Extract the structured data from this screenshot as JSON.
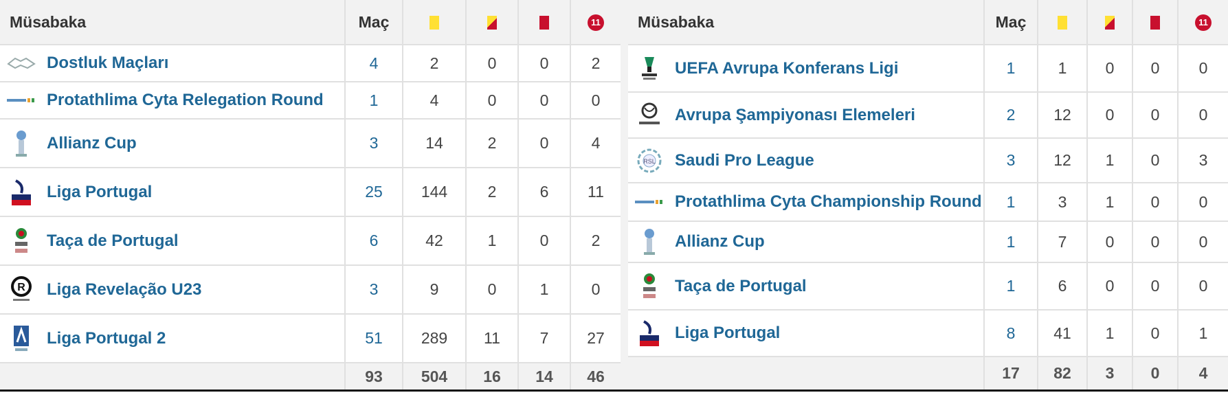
{
  "left": {
    "headers": {
      "competition": "Müsabaka",
      "matches": "Maç",
      "red_badge_text": "11"
    },
    "rows": [
      {
        "name": "Dostluk Maçları",
        "logo": "handshake-icon",
        "matches": "4",
        "yellow": "2",
        "yellow_red": "0",
        "red": "0",
        "penalty": "2"
      },
      {
        "name": "Protathlima Cyta Relegation Round",
        "logo": "cyta-logo",
        "matches": "1",
        "yellow": "4",
        "yellow_red": "0",
        "red": "0",
        "penalty": "0"
      },
      {
        "name": "Allianz Cup",
        "logo": "allianz-cup-logo",
        "matches": "3",
        "yellow": "14",
        "yellow_red": "2",
        "red": "0",
        "penalty": "4"
      },
      {
        "name": "Liga Portugal",
        "logo": "liga-portugal-logo",
        "matches": "25",
        "yellow": "144",
        "yellow_red": "2",
        "red": "6",
        "penalty": "11"
      },
      {
        "name": "Taça de Portugal",
        "logo": "taca-portugal-logo",
        "matches": "6",
        "yellow": "42",
        "yellow_red": "1",
        "red": "0",
        "penalty": "2"
      },
      {
        "name": "Liga Revelação U23",
        "logo": "liga-revelacao-logo",
        "matches": "3",
        "yellow": "9",
        "yellow_red": "0",
        "red": "1",
        "penalty": "0"
      },
      {
        "name": "Liga Portugal 2",
        "logo": "liga-portugal-2-logo",
        "matches": "51",
        "yellow": "289",
        "yellow_red": "11",
        "red": "7",
        "penalty": "27"
      }
    ],
    "totals": {
      "matches": "93",
      "yellow": "504",
      "yellow_red": "16",
      "red": "14",
      "penalty": "46"
    }
  },
  "right": {
    "headers": {
      "competition": "Müsabaka",
      "matches": "Maç",
      "red_badge_text": "11"
    },
    "rows": [
      {
        "name": "UEFA Avrupa Konferans Ligi",
        "logo": "uefa-conference-logo",
        "matches": "1",
        "yellow": "1",
        "yellow_red": "0",
        "red": "0",
        "penalty": "0"
      },
      {
        "name": "Avrupa Şampiyonası Elemeleri",
        "logo": "euro-qualifiers-logo",
        "matches": "2",
        "yellow": "12",
        "yellow_red": "0",
        "red": "0",
        "penalty": "0"
      },
      {
        "name": "Saudi Pro League",
        "logo": "saudi-pro-league-logo",
        "matches": "3",
        "yellow": "12",
        "yellow_red": "1",
        "red": "0",
        "penalty": "3"
      },
      {
        "name": "Protathlima Cyta Championship Round",
        "logo": "cyta-logo",
        "matches": "1",
        "yellow": "3",
        "yellow_red": "1",
        "red": "0",
        "penalty": "0"
      },
      {
        "name": "Allianz Cup",
        "logo": "allianz-cup-logo",
        "matches": "1",
        "yellow": "7",
        "yellow_red": "0",
        "red": "0",
        "penalty": "0"
      },
      {
        "name": "Taça de Portugal",
        "logo": "taca-portugal-logo",
        "matches": "1",
        "yellow": "6",
        "yellow_red": "0",
        "red": "0",
        "penalty": "0"
      },
      {
        "name": "Liga Portugal",
        "logo": "liga-portugal-logo",
        "matches": "8",
        "yellow": "41",
        "yellow_red": "1",
        "red": "0",
        "penalty": "1"
      }
    ],
    "totals": {
      "matches": "17",
      "yellow": "82",
      "yellow_red": "3",
      "red": "0",
      "penalty": "4"
    }
  },
  "colors": {
    "link": "#1f6796",
    "yellow_card": "#ffe033",
    "red_card": "#c8102e",
    "header_bg": "#f2f2f2"
  }
}
